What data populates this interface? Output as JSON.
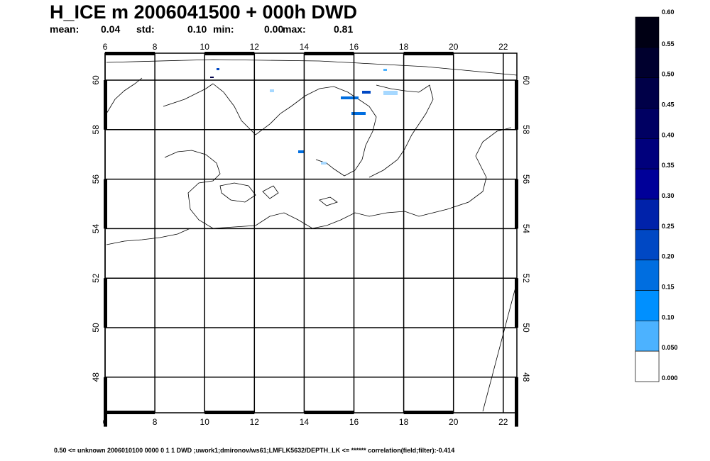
{
  "header": {
    "title": "H_ICE m   2006041500 +  000h  DWD",
    "stats": [
      {
        "label": "mean:",
        "value": "0.04"
      },
      {
        "label": "std:",
        "value": "0.10"
      },
      {
        "label": "min:",
        "value": "0.00"
      },
      {
        "label": "max:",
        "value": "0.81"
      }
    ]
  },
  "map": {
    "lon_labels": [
      "6",
      "8",
      "10",
      "12",
      "14",
      "16",
      "18",
      "20",
      "22"
    ],
    "lat_labels": [
      "60",
      "58",
      "56",
      "54",
      "52",
      "50",
      "48"
    ]
  },
  "colorbar": {
    "labels": [
      "0.60",
      "0.55",
      "0.50",
      "0.45",
      "0.40",
      "0.35",
      "0.30",
      "0.25",
      "0.20",
      "0.15",
      "0.10",
      "0.050",
      "0.000"
    ],
    "colors": [
      "#000014",
      "#00002e",
      "#000048",
      "#000062",
      "#00007c",
      "#000099",
      "#0022aa",
      "#0048c4",
      "#006ee0",
      "#0090ff",
      "#4cb2ff",
      "#a6d8ff",
      "#ffffff"
    ]
  },
  "footer": "0.50  <=  unknown 2006010100 0000 0 1 1 DWD ;uwork1;dmironov/ws61;LMFLK5632/DEPTH_LK  <=  ******    correlation(field;filter):-0.414"
}
